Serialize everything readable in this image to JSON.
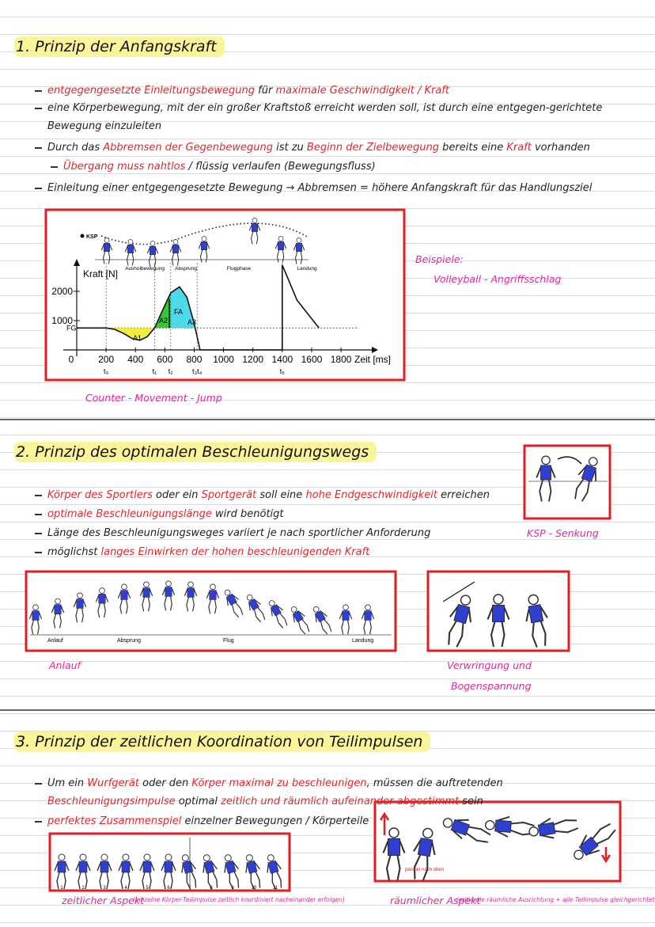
{
  "sections": [
    {
      "title": "1. Prinzip der Anfangskraft",
      "bullets": [
        {
          "parts": [
            {
              "text": "entgegengesetzte Einleitungsbewegung",
              "color": "#e3262b"
            },
            {
              "text": " für ",
              "color": "#222222"
            },
            {
              "text": "maximale Geschwindigkeit / Kraft",
              "color": "#e3262b"
            }
          ]
        },
        {
          "parts": [
            {
              "text": "eine Körperbewegung, mit der ein großer Kraftstoß erreicht werden soll, ist durch eine entgegen-gerichtete Bewegung einzuleiten",
              "color": "#222222"
            }
          ]
        },
        {
          "parts": [
            {
              "text": "Durch das ",
              "color": "#222222"
            },
            {
              "text": "Abbremsen der Gegenbewegung",
              "color": "#e3262b"
            },
            {
              "text": " ist zu ",
              "color": "#222222"
            },
            {
              "text": "Beginn der Zielbewegung",
              "color": "#e3262b"
            },
            {
              "text": " bereits eine ",
              "color": "#222222"
            },
            {
              "text": "Kraft",
              "color": "#e3262b"
            },
            {
              "text": " vorhanden",
              "color": "#222222"
            }
          ]
        },
        {
          "sub": true,
          "parts": [
            {
              "text": "Übergang muss nahtlos",
              "color": "#e3262b"
            },
            {
              "text": " / flüssig verlaufen (Bewegungsfluss)",
              "color": "#222222"
            }
          ]
        },
        {
          "parts": [
            {
              "text": "Einleitung einer entgegengesetzte Bewegung → Abbremsen = höhere Anfangskraft für das Handlungsziel",
              "color": "#222222"
            }
          ]
        }
      ],
      "notes": [
        "Beispiele:",
        "Volleyball - Angriffsschlag",
        "Counter - Movement - Jump"
      ],
      "figure": {
        "ksp": "KSP",
        "ylabel": "Kraft [N]",
        "xlabel": "Zeit [ms]",
        "phases": [
          "Ausholbewegung",
          "Absprung",
          "Flugphase",
          "Landung"
        ],
        "xlim": [
          0,
          1900
        ],
        "ylim": [
          0,
          3000
        ],
        "xticks": [
          0,
          200,
          400,
          600,
          800,
          1000,
          1200,
          1400,
          1600,
          1800
        ],
        "yticks": [
          1000,
          2000
        ],
        "fg": {
          "label": "FG",
          "value": 750
        },
        "areas": [
          "A1",
          "A2",
          "A3",
          "FA"
        ],
        "times": [
          {
            "label": "t₀",
            "x": 200
          },
          {
            "label": "t₁",
            "x": 530
          },
          {
            "label": "t₂",
            "x": 640
          },
          {
            "label": "t₃t₄",
            "x": 820
          },
          {
            "label": "t₅",
            "x": 1400
          }
        ],
        "curve": {
          "x": [
            0,
            200,
            260,
            320,
            380,
            430,
            480,
            530,
            580,
            640,
            700,
            750,
            800,
            840,
            1400,
            1400,
            1500,
            1650
          ],
          "y": [
            750,
            750,
            700,
            560,
            380,
            330,
            450,
            750,
            1300,
            1950,
            2150,
            1800,
            900,
            0,
            0,
            2900,
            1700,
            750
          ]
        }
      }
    },
    {
      "title": "2. Prinzip des optimalen Beschleunigungswegs",
      "bullets": [
        {
          "parts": [
            {
              "text": "Körper des Sportlers",
              "color": "#e3262b"
            },
            {
              "text": " oder ein ",
              "color": "#222222"
            },
            {
              "text": "Sportgerät",
              "color": "#e3262b"
            },
            {
              "text": " soll eine ",
              "color": "#222222"
            },
            {
              "text": "hohe Endgeschwindigkeit",
              "color": "#e3262b"
            },
            {
              "text": " erreichen",
              "color": "#222222"
            }
          ]
        },
        {
          "parts": [
            {
              "text": "optimale Beschleunigungslänge",
              "color": "#e3262b"
            },
            {
              "text": " wird benötigt",
              "color": "#222222"
            }
          ]
        },
        {
          "parts": [
            {
              "text": "Länge des Beschleunigungsweges variiert je nach sportlicher Anforderung",
              "color": "#222222"
            }
          ]
        },
        {
          "parts": [
            {
              "text": "möglichst ",
              "color": "#222222"
            },
            {
              "text": "langes Einwirken der hohen beschleunigenden Kraft",
              "color": "#e3262b"
            }
          ]
        }
      ],
      "notes": [
        "KSP - Senkung",
        "Anlauf",
        "Verwringung und",
        "Bogenspannung"
      ],
      "jump_labels": [
        "Anlauf",
        "Absprung",
        "Flug",
        "Landung"
      ]
    },
    {
      "title": "3. Prinzip der zeitlichen Koordination von Teilimpulsen",
      "bullets": [
        {
          "parts": [
            {
              "text": "Um ein ",
              "color": "#222222"
            },
            {
              "text": "Wurfgerät",
              "color": "#e3262b"
            },
            {
              "text": " oder den ",
              "color": "#222222"
            },
            {
              "text": "Körper maximal zu beschleunigen",
              "color": "#e3262b"
            },
            {
              "text": ", müssen die auftretenden ",
              "color": "#222222"
            },
            {
              "text": "Beschleunigungsimpulse",
              "color": "#e3262b"
            },
            {
              "text": " optimal ",
              "color": "#222222"
            },
            {
              "text": "zeitlich und räumlich aufeinander abgestimmt",
              "color": "#e3262b"
            },
            {
              "text": " sein",
              "color": "#222222"
            }
          ]
        },
        {
          "parts": [
            {
              "text": "perfektes Zusammenspiel",
              "color": "#e3262b"
            },
            {
              "text": " einzelner Bewegungen / Körperteile",
              "color": "#222222"
            }
          ]
        }
      ],
      "notes": [
        "zeitlicher Aspekt",
        "(einzelne Körper-Teilimpulse zeitlich koordiniert nacheinander erfolgen)",
        "räumlicher Aspekt",
        "(optimale räumliche Ausrichtung + alle Teilimpulse gleichgerichtet)"
      ],
      "frame_numbers": [
        "1",
        "2",
        "3",
        "4",
        "5",
        "6",
        "7",
        "8",
        "9",
        "10",
        "11"
      ],
      "arrow_note": "parallel nach oben"
    }
  ]
}
